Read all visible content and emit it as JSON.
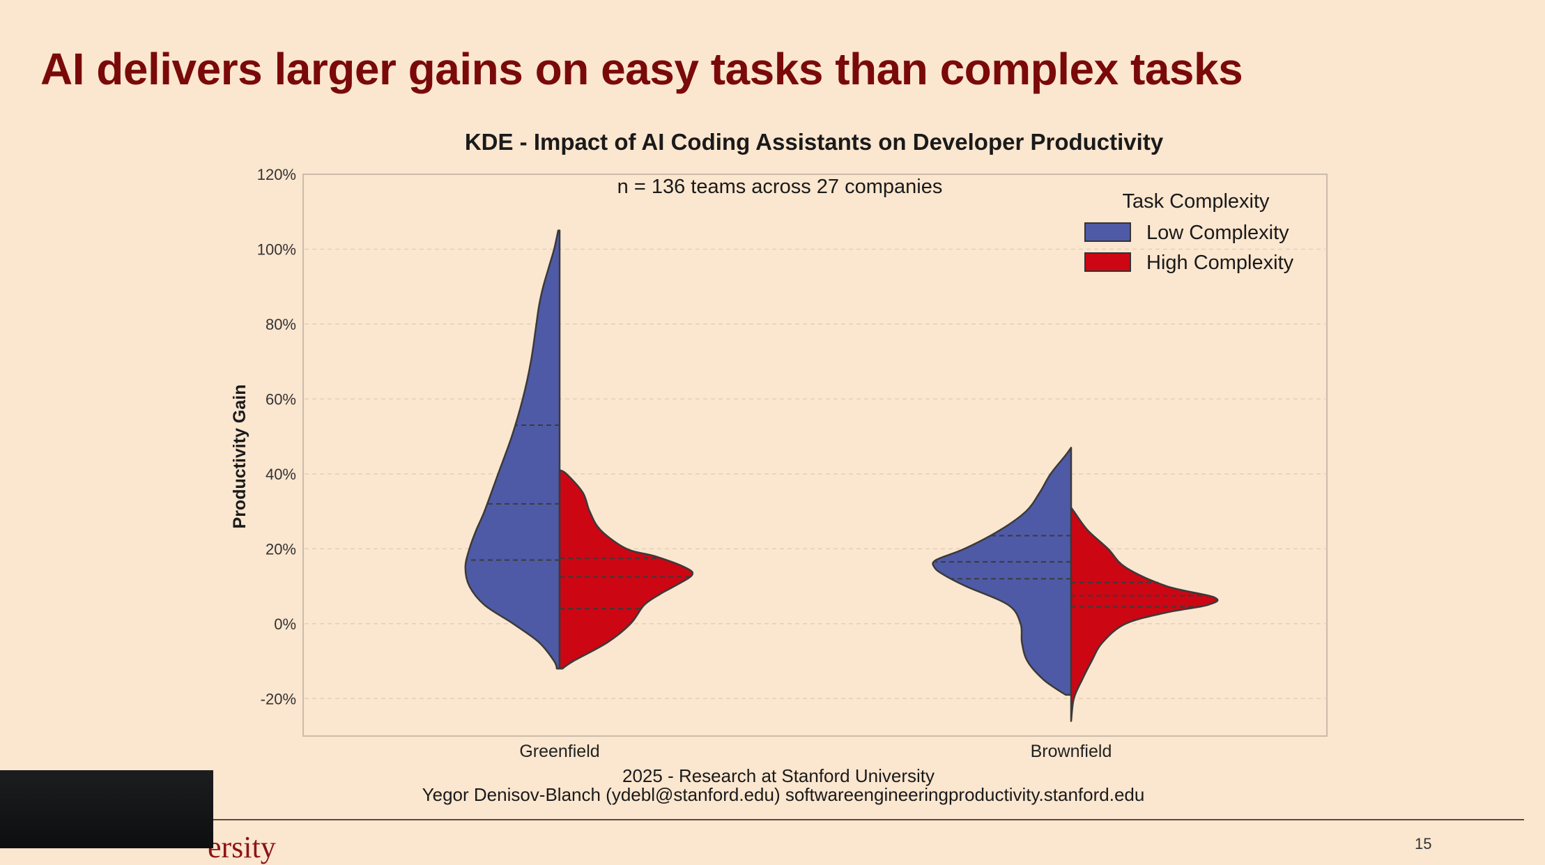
{
  "slide": {
    "title": "AI delivers larger gains on easy tasks than complex tasks",
    "footer_university": "ersity",
    "page_number": "15"
  },
  "colors": {
    "background": "#fbe6cf",
    "title": "#7a0a0a",
    "low_complexity": "#4f5aa6",
    "high_complexity": "#cc0613",
    "outline": "#3a3a3a"
  },
  "chart_data": {
    "type": "violin",
    "title": "KDE - Impact of AI Coding Assistants on Developer Productivity",
    "annotation": "n = 136 teams across 27 companies",
    "ylabel": "Productivity Gain",
    "xlabel": "",
    "ylim": [
      -30,
      120
    ],
    "yticks": [
      -20,
      0,
      20,
      40,
      60,
      80,
      100,
      120
    ],
    "ytick_labels": [
      "-20%",
      "0%",
      "20%",
      "40%",
      "60%",
      "80%",
      "100%",
      "120%"
    ],
    "categories": [
      "Greenfield",
      "Brownfield"
    ],
    "grid": true,
    "legend": {
      "title": "Task Complexity",
      "position": "top-right",
      "entries": [
        "Low Complexity",
        "High Complexity"
      ]
    },
    "series": [
      {
        "name": "Low Complexity",
        "side": "left",
        "violins": [
          {
            "category": "Greenfield",
            "density": [
              [
                -12,
                0.02
              ],
              [
                -10,
                0.04
              ],
              [
                -5,
                0.15
              ],
              [
                0,
                0.34
              ],
              [
                5,
                0.55
              ],
              [
                10,
                0.66
              ],
              [
                15,
                0.69
              ],
              [
                20,
                0.66
              ],
              [
                25,
                0.61
              ],
              [
                30,
                0.55
              ],
              [
                40,
                0.45
              ],
              [
                50,
                0.35
              ],
              [
                60,
                0.27
              ],
              [
                70,
                0.21
              ],
              [
                80,
                0.17
              ],
              [
                85,
                0.15
              ],
              [
                90,
                0.12
              ],
              [
                95,
                0.08
              ],
              [
                100,
                0.04
              ],
              [
                105,
                0.01
              ]
            ],
            "quartiles": [
              17,
              32,
              53
            ]
          },
          {
            "category": "Brownfield",
            "density": [
              [
                -19,
                0.04
              ],
              [
                -15,
                0.2
              ],
              [
                -10,
                0.32
              ],
              [
                -5,
                0.36
              ],
              [
                0,
                0.37
              ],
              [
                5,
                0.46
              ],
              [
                10,
                0.77
              ],
              [
                13,
                0.93
              ],
              [
                15,
                1.0
              ],
              [
                17,
                0.99
              ],
              [
                20,
                0.78
              ],
              [
                25,
                0.52
              ],
              [
                30,
                0.33
              ],
              [
                35,
                0.23
              ],
              [
                40,
                0.15
              ],
              [
                45,
                0.04
              ],
              [
                47,
                0.0
              ]
            ],
            "quartiles": [
              12,
              16.5,
              23.5
            ]
          }
        ]
      },
      {
        "name": "High Complexity",
        "side": "right",
        "violins": [
          {
            "category": "Greenfield",
            "density": [
              [
                -12,
                0.02
              ],
              [
                -10,
                0.1
              ],
              [
                -5,
                0.35
              ],
              [
                0,
                0.52
              ],
              [
                5,
                0.62
              ],
              [
                8,
                0.74
              ],
              [
                10,
                0.84
              ],
              [
                13,
                0.97
              ],
              [
                15,
                0.92
              ],
              [
                18,
                0.7
              ],
              [
                20,
                0.49
              ],
              [
                25,
                0.3
              ],
              [
                30,
                0.22
              ],
              [
                35,
                0.17
              ],
              [
                40,
                0.05
              ],
              [
                41,
                0.0
              ]
            ],
            "quartiles": [
              4,
              12.5,
              17.5
            ]
          },
          {
            "category": "Brownfield",
            "density": [
              [
                -26,
                0.0
              ],
              [
                -20,
                0.02
              ],
              [
                -15,
                0.08
              ],
              [
                -10,
                0.15
              ],
              [
                -5,
                0.23
              ],
              [
                0,
                0.4
              ],
              [
                3,
                0.7
              ],
              [
                5,
                1.0
              ],
              [
                7,
                1.05
              ],
              [
                10,
                0.7
              ],
              [
                15,
                0.4
              ],
              [
                20,
                0.27
              ],
              [
                25,
                0.12
              ],
              [
                30,
                0.02
              ],
              [
                31,
                0.0
              ]
            ],
            "quartiles": [
              4.5,
              7.5,
              11
            ]
          }
        ]
      }
    ]
  },
  "credits": {
    "line1": "2025 - Research at Stanford University",
    "line2": "Yegor Denisov-Blanch (ydebl@stanford.edu) softwareengineeringproductivity.stanford.edu"
  }
}
